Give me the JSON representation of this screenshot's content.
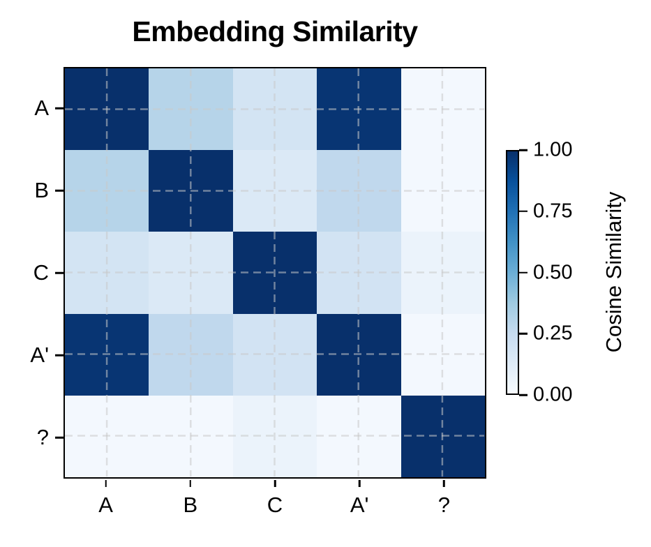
{
  "chart_data": {
    "type": "heatmap",
    "title": "Embedding Similarity",
    "x_categories": [
      "A",
      "B",
      "C",
      "A'",
      "?"
    ],
    "y_categories": [
      "A",
      "B",
      "C",
      "A'",
      "?"
    ],
    "matrix": [
      [
        1.0,
        0.3,
        0.18,
        0.98,
        0.02
      ],
      [
        0.3,
        1.0,
        0.14,
        0.27,
        0.02
      ],
      [
        0.18,
        0.14,
        1.0,
        0.19,
        0.06
      ],
      [
        0.98,
        0.27,
        0.19,
        1.0,
        0.02
      ],
      [
        0.02,
        0.02,
        0.06,
        0.02,
        1.0
      ]
    ],
    "value_range": [
      0,
      1
    ],
    "colormap": "Blues",
    "grid": "dashed gridlines through cell centers",
    "legend_position": "right colorbar",
    "colorbar": {
      "label": "Cosine Similarity",
      "tick_labels": [
        "1.00",
        "0.75",
        "0.50",
        "0.25",
        "0.00"
      ],
      "tick_values": [
        1.0,
        0.75,
        0.5,
        0.25,
        0.0
      ]
    }
  },
  "colors": {
    "cmap_stops": [
      "#f7fbff",
      "#deebf7",
      "#c6dbef",
      "#9ecae1",
      "#6baed6",
      "#4292c6",
      "#2171b5",
      "#08519c",
      "#08306b"
    ],
    "gridline": "#c8c8c8",
    "axis": "#000000",
    "background": "#ffffff"
  }
}
